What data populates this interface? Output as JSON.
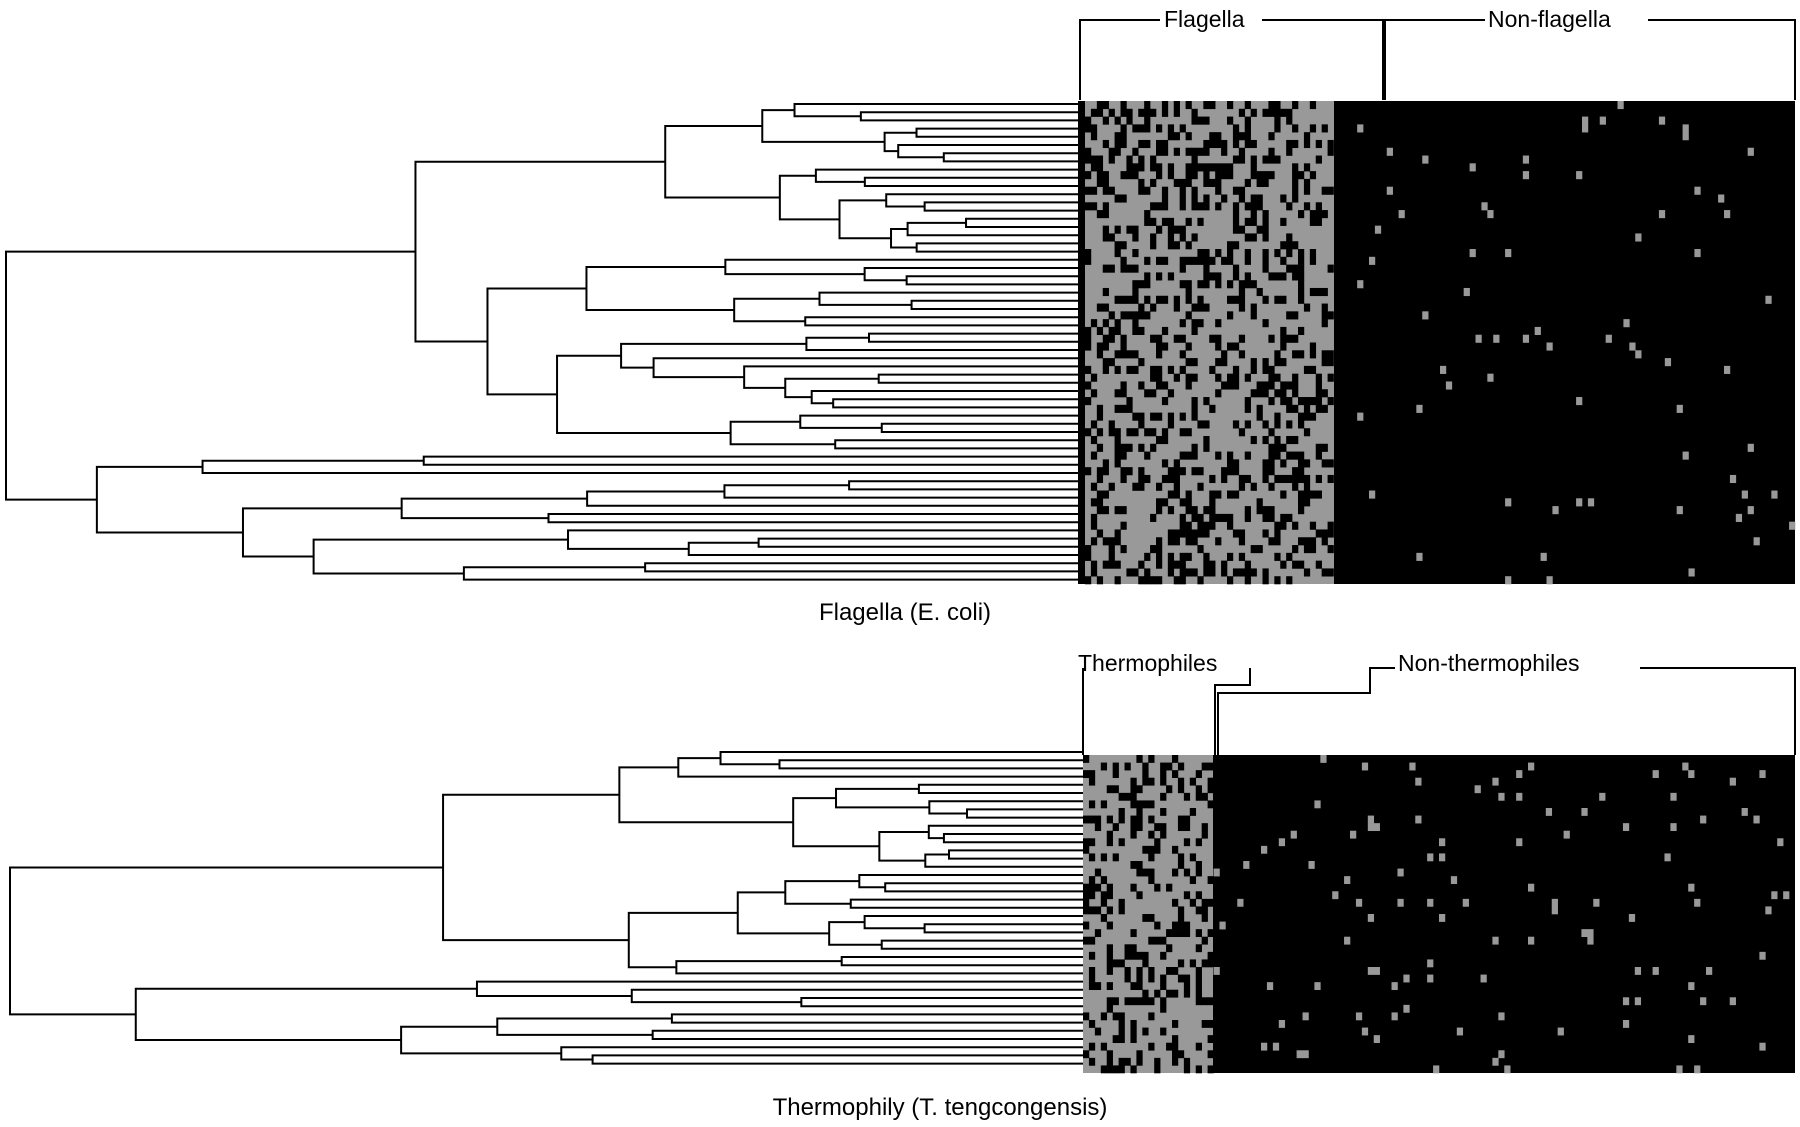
{
  "panels": [
    {
      "id": "flagella",
      "caption": "Flagella (E. coli)",
      "group_labels": [
        "Flagella",
        "Non-flagella"
      ],
      "colors": {
        "present": "#000000",
        "absent": "#999999",
        "line": "#000000"
      }
    },
    {
      "id": "thermophily",
      "caption": "Thermophily (T. tengcongensis)",
      "group_labels": [
        "Thermophiles",
        "Non-thermophiles"
      ],
      "colors": {
        "present": "#000000",
        "absent": "#999999",
        "line": "#000000"
      }
    }
  ]
}
